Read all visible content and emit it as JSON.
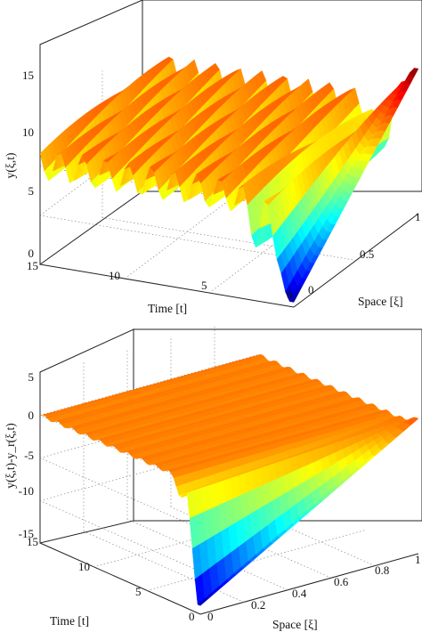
{
  "chart_data": [
    {
      "type": "surface",
      "zlabel": "y(ξ,t)",
      "xlabel": "Time [t]",
      "ylabel": "Space [ξ]",
      "zlim": [
        0,
        15
      ],
      "xlim": [
        0,
        15
      ],
      "ylim": [
        0,
        1
      ],
      "zticks": [
        "0",
        "5",
        "10",
        "15"
      ],
      "tticks": [
        "0",
        "5",
        "10",
        "15"
      ],
      "sticks": [
        "0",
        "0.5",
        "1"
      ],
      "colormap": "jet",
      "data_summary": {
        "surface_at_space_max_min": 0.5,
        "surface_at_space_max_max": 14.8,
        "body_mean": 10.3,
        "oscillation_amplitude": 1.6
      }
    },
    {
      "type": "surface",
      "zlabel": "y(ξ,t)-y_r(ξ,t)",
      "xlabel": "Time [t]",
      "ylabel": "Space [ξ]",
      "zlim": [
        -15,
        5
      ],
      "xlim": [
        0,
        15
      ],
      "ylim": [
        0,
        1
      ],
      "zticks": [
        "-15",
        "-10",
        "-5",
        "0",
        "5"
      ],
      "tticks": [
        "0",
        "5",
        "10",
        "15"
      ],
      "sticks": [
        "0",
        "0.2",
        "0.4",
        "0.6",
        "0.8",
        "1"
      ],
      "colormap": "jet",
      "data_summary": {
        "surface_at_space_max_min": -14.0,
        "surface_at_space_max_max": 0.8,
        "body_mean": 0
      }
    }
  ]
}
